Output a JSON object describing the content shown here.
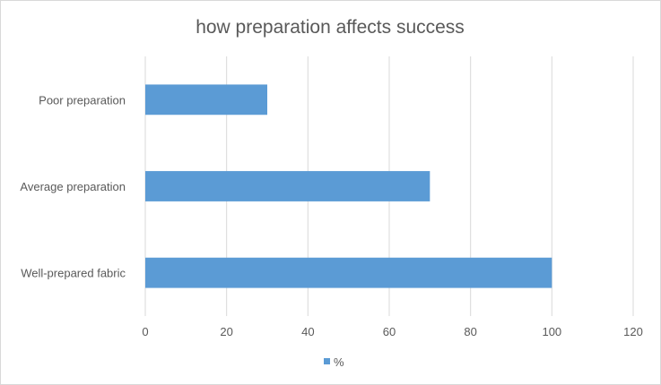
{
  "chart_data": {
    "type": "bar",
    "orientation": "horizontal",
    "title": "how preparation affects success",
    "xlabel": "",
    "ylabel": "",
    "categories": [
      "Poor preparation",
      "Average preparation",
      "Well-prepared fabric"
    ],
    "series": [
      {
        "name": "%",
        "values": [
          30,
          70,
          100
        ],
        "color": "#5b9bd5"
      }
    ],
    "xlim": [
      0,
      120
    ],
    "xticks": [
      0,
      20,
      40,
      60,
      80,
      100,
      120
    ],
    "grid": "vertical",
    "legend": "bottom"
  }
}
